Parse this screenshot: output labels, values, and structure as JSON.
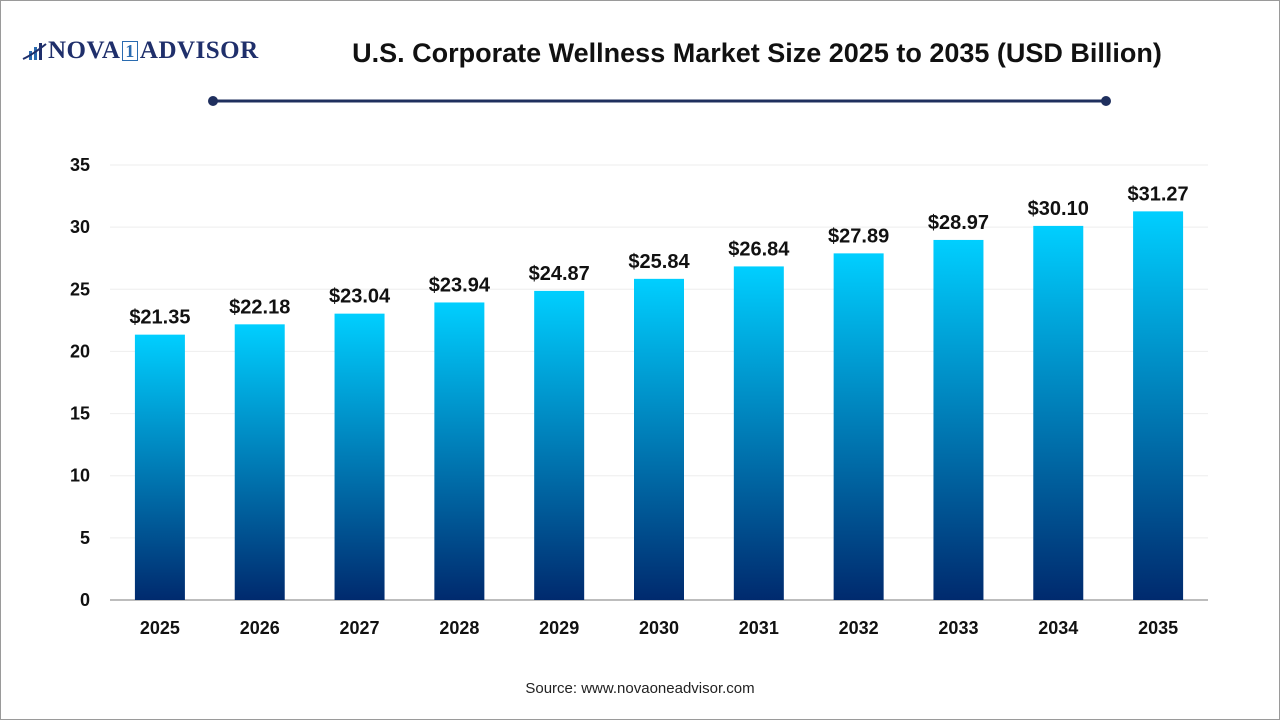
{
  "logo": {
    "text_left": "NOVA",
    "text_one": "1",
    "text_right": "ADVISOR"
  },
  "source": "Source: www.novaoneadvisor.com",
  "colors": {
    "bar_top": "#00cfff",
    "bar_bottom": "#002a6e",
    "title_rule": "#1f2f5e"
  },
  "chart_data": {
    "type": "bar",
    "title": "U.S. Corporate Wellness Market Size 2025 to 2035 (USD Billion)",
    "categories": [
      "2025",
      "2026",
      "2027",
      "2028",
      "2029",
      "2030",
      "2031",
      "2032",
      "2033",
      "2034",
      "2035"
    ],
    "values": [
      21.35,
      22.18,
      23.04,
      23.94,
      24.87,
      25.84,
      26.84,
      27.89,
      28.97,
      30.1,
      31.27
    ],
    "data_labels": [
      "$21.35",
      "$22.18",
      "$23.04",
      "$23.94",
      "$24.87",
      "$25.84",
      "$26.84",
      "$27.89",
      "$28.97",
      "$30.10",
      "$31.27"
    ],
    "xlabel": "",
    "ylabel": "",
    "ylim": [
      0,
      35
    ],
    "yticks": [
      "0",
      "5",
      "10",
      "15",
      "20",
      "25",
      "30",
      "35"
    ],
    "grid": true,
    "legend": "none"
  }
}
